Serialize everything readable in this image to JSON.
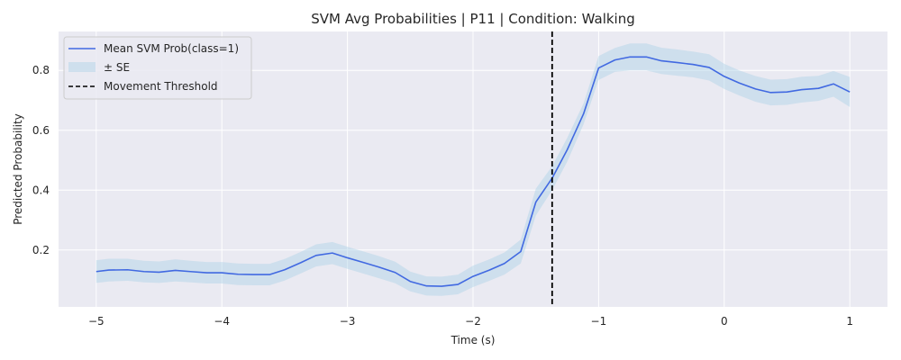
{
  "chart_data": {
    "type": "line",
    "title": "SVM Avg Probabilities | P11 | Condition: Walking",
    "xlabel": "Time (s)",
    "ylabel": "Predicted Probability",
    "xlim": [
      -5.3,
      1.3
    ],
    "ylim": [
      0.01,
      0.93
    ],
    "xticks": [
      -5,
      -4,
      -3,
      -2,
      -1,
      0,
      1
    ],
    "xtick_labels": [
      "−5",
      "−4",
      "−3",
      "−2",
      "−1",
      "0",
      "1"
    ],
    "yticks": [
      0.2,
      0.4,
      0.6,
      0.8
    ],
    "ytick_labels": [
      "0.2",
      "0.4",
      "0.6",
      "0.8"
    ],
    "grid": true,
    "legend_position": "top-left",
    "colors": {
      "line": "#4169e1",
      "band": "#aed2e6",
      "threshold": "#000000",
      "plot_bg": "#eaeaf2",
      "grid": "#ffffff"
    },
    "series": [
      {
        "name": "Mean SVM Prob(class=1)",
        "x": [
          -5.0,
          -4.9,
          -4.75,
          -4.62,
          -4.5,
          -4.37,
          -4.25,
          -4.12,
          -4.0,
          -3.87,
          -3.75,
          -3.62,
          -3.5,
          -3.37,
          -3.25,
          -3.12,
          -3.0,
          -2.87,
          -2.75,
          -2.62,
          -2.5,
          -2.37,
          -2.25,
          -2.12,
          -2.0,
          -1.87,
          -1.75,
          -1.62,
          -1.5,
          -1.37,
          -1.25,
          -1.12,
          -1.0,
          -0.87,
          -0.75,
          -0.62,
          -0.5,
          -0.37,
          -0.25,
          -0.12,
          0.0,
          0.12,
          0.25,
          0.37,
          0.5,
          0.62,
          0.75,
          0.87,
          1.0
        ],
        "values": [
          0.128,
          0.133,
          0.134,
          0.128,
          0.126,
          0.132,
          0.128,
          0.124,
          0.124,
          0.119,
          0.118,
          0.118,
          0.134,
          0.158,
          0.182,
          0.19,
          0.174,
          0.158,
          0.143,
          0.125,
          0.095,
          0.08,
          0.079,
          0.085,
          0.112,
          0.133,
          0.155,
          0.195,
          0.36,
          0.44,
          0.535,
          0.655,
          0.808,
          0.835,
          0.845,
          0.845,
          0.832,
          0.826,
          0.82,
          0.81,
          0.78,
          0.758,
          0.738,
          0.726,
          0.728,
          0.736,
          0.74,
          0.755,
          0.728
        ],
        "se_lower": [
          0.09,
          0.095,
          0.097,
          0.092,
          0.09,
          0.095,
          0.092,
          0.088,
          0.088,
          0.083,
          0.082,
          0.082,
          0.098,
          0.122,
          0.145,
          0.153,
          0.137,
          0.121,
          0.106,
          0.089,
          0.062,
          0.048,
          0.047,
          0.052,
          0.076,
          0.097,
          0.118,
          0.155,
          0.315,
          0.4,
          0.495,
          0.62,
          0.768,
          0.795,
          0.8,
          0.8,
          0.788,
          0.782,
          0.777,
          0.766,
          0.738,
          0.716,
          0.695,
          0.683,
          0.685,
          0.693,
          0.698,
          0.712,
          0.678
        ],
        "se_upper": [
          0.166,
          0.171,
          0.171,
          0.164,
          0.162,
          0.169,
          0.164,
          0.16,
          0.16,
          0.155,
          0.154,
          0.154,
          0.17,
          0.194,
          0.219,
          0.227,
          0.211,
          0.195,
          0.18,
          0.161,
          0.128,
          0.112,
          0.111,
          0.118,
          0.148,
          0.169,
          0.192,
          0.235,
          0.405,
          0.48,
          0.575,
          0.69,
          0.848,
          0.875,
          0.89,
          0.89,
          0.876,
          0.87,
          0.863,
          0.854,
          0.822,
          0.8,
          0.781,
          0.769,
          0.771,
          0.779,
          0.782,
          0.798,
          0.778
        ]
      }
    ],
    "band_label": "± SE",
    "threshold": {
      "name": "Movement Threshold",
      "x": -1.37
    }
  }
}
